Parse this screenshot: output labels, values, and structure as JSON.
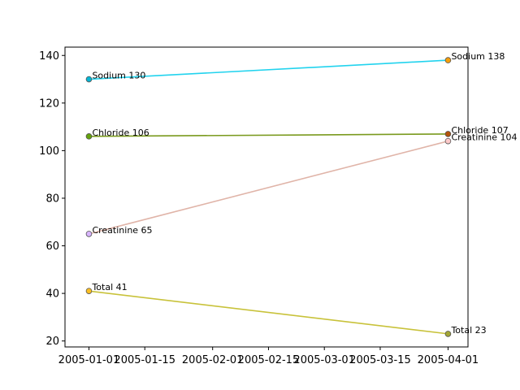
{
  "chart_data": {
    "type": "line",
    "title": "",
    "xlabel": "",
    "ylabel": "",
    "x_type": "date",
    "xlim": [
      "2004-12-26",
      "2005-04-06"
    ],
    "ylim": [
      17.5,
      143.5
    ],
    "grid": false,
    "x_ticks": [
      "2005-01-01",
      "2005-01-15",
      "2005-02-01",
      "2005-02-15",
      "2005-03-01",
      "2005-03-15",
      "2005-04-01"
    ],
    "x_tick_labels": [
      "2005-01-01",
      "2005-01-15",
      "2005-02-01",
      "2005-02-15",
      "2005-03-01",
      "2005-03-15",
      "2005-04-01"
    ],
    "y_ticks": [
      20,
      40,
      60,
      80,
      100,
      120,
      140
    ],
    "y_tick_labels": [
      "20",
      "40",
      "60",
      "80",
      "100",
      "120",
      "140"
    ],
    "series": [
      {
        "name": "Sodium",
        "line_color": "#22d3ee",
        "points": [
          {
            "x": "2005-01-01",
            "y": 130,
            "label": "Sodium 130",
            "color": "#06b6d4"
          },
          {
            "x": "2005-04-01",
            "y": 138,
            "label": "Sodium 138",
            "color": "#f59e0b"
          }
        ]
      },
      {
        "name": "Chloride",
        "line_color": "#7a9a1e",
        "points": [
          {
            "x": "2005-01-01",
            "y": 106,
            "label": "Chloride 106",
            "color": "#65a30d"
          },
          {
            "x": "2005-04-01",
            "y": 107,
            "label": "Chloride 107",
            "color": "#b45309"
          }
        ]
      },
      {
        "name": "Creatinine",
        "line_color": "#e0b4a8",
        "points": [
          {
            "x": "2005-01-01",
            "y": 65,
            "label": "Creatinine 65",
            "color": "#d8b4fe"
          },
          {
            "x": "2005-04-01",
            "y": 104,
            "label": "Creatinine 104",
            "color": "#fecaca"
          }
        ]
      },
      {
        "name": "Total",
        "line_color": "#c8c23a",
        "points": [
          {
            "x": "2005-01-01",
            "y": 41,
            "label": "Total 41",
            "color": "#fbbf24"
          },
          {
            "x": "2005-04-01",
            "y": 23,
            "label": "Total 23",
            "color": "#a3a635"
          }
        ]
      }
    ]
  }
}
